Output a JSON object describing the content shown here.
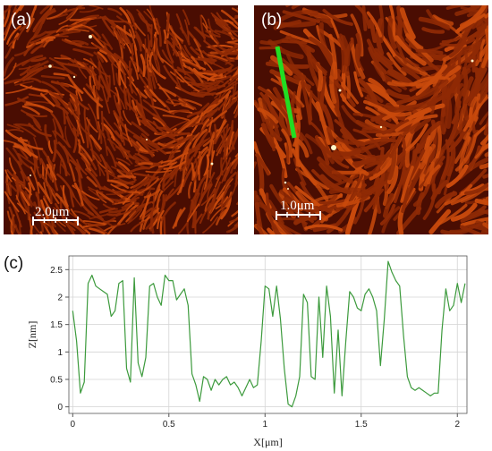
{
  "panels": {
    "a": {
      "label": "(a)",
      "scale_bar": "2.0μm"
    },
    "b": {
      "label": "(b)",
      "scale_bar": "1.0μm"
    },
    "c": {
      "label": "(c)"
    }
  },
  "colors": {
    "afm_dark": "#4a0d02",
    "afm_mid": "#8f2a05",
    "afm_light": "#c94a0c",
    "line_marker": "#22dd22",
    "profile_line": "#3c9a3c",
    "grid": "#d4d4d4"
  },
  "chart_data": {
    "type": "line",
    "xlabel": "X[μm]",
    "ylabel": "Z[nm]",
    "xlim": [
      -0.02,
      2.05
    ],
    "ylim": [
      -0.12,
      2.75
    ],
    "x_ticks": [
      0,
      0.5,
      1,
      1.5,
      2
    ],
    "x_tick_labels": [
      "0",
      "0.5",
      "1",
      "1.5",
      "2"
    ],
    "y_ticks": [
      0,
      0.5,
      1,
      1.5,
      2,
      2.5
    ],
    "y_tick_labels": [
      "0",
      "0.5",
      "1",
      "1.5",
      "2",
      "2.5"
    ],
    "grid": true,
    "series": [
      {
        "x": [
          0.0,
          0.02,
          0.04,
          0.06,
          0.08,
          0.1,
          0.12,
          0.14,
          0.16,
          0.18,
          0.2,
          0.22,
          0.24,
          0.26,
          0.28,
          0.3,
          0.32,
          0.34,
          0.36,
          0.38,
          0.4,
          0.42,
          0.44,
          0.46,
          0.48,
          0.5,
          0.52,
          0.54,
          0.56,
          0.58,
          0.6,
          0.62,
          0.64,
          0.66,
          0.68,
          0.7,
          0.72,
          0.74,
          0.76,
          0.78,
          0.8,
          0.82,
          0.84,
          0.86,
          0.88,
          0.9,
          0.92,
          0.94,
          0.96,
          0.98,
          1.0,
          1.02,
          1.04,
          1.06,
          1.08,
          1.1,
          1.12,
          1.14,
          1.16,
          1.18,
          1.2,
          1.22,
          1.24,
          1.26,
          1.28,
          1.3,
          1.32,
          1.34,
          1.36,
          1.38,
          1.4,
          1.42,
          1.44,
          1.46,
          1.48,
          1.5,
          1.52,
          1.54,
          1.56,
          1.58,
          1.6,
          1.62,
          1.64,
          1.66,
          1.68,
          1.7,
          1.72,
          1.74,
          1.76,
          1.78,
          1.8,
          1.82,
          1.84,
          1.86,
          1.88,
          1.9,
          1.92,
          1.94,
          1.96,
          1.98,
          2.0,
          2.02,
          2.04
        ],
        "y": [
          1.75,
          1.2,
          0.25,
          0.45,
          2.25,
          2.4,
          2.2,
          2.15,
          2.1,
          2.05,
          1.65,
          1.75,
          2.25,
          2.3,
          0.7,
          0.45,
          2.35,
          0.8,
          0.55,
          0.9,
          2.2,
          2.25,
          2.0,
          1.85,
          2.4,
          2.3,
          2.3,
          1.95,
          2.05,
          2.15,
          1.85,
          0.6,
          0.4,
          0.1,
          0.55,
          0.5,
          0.3,
          0.5,
          0.4,
          0.5,
          0.55,
          0.4,
          0.45,
          0.35,
          0.2,
          0.35,
          0.5,
          0.35,
          0.4,
          1.2,
          2.2,
          2.15,
          1.65,
          2.2,
          1.6,
          0.7,
          0.05,
          0.0,
          0.2,
          0.55,
          2.05,
          1.9,
          0.55,
          0.5,
          2.0,
          0.9,
          2.2,
          1.65,
          0.25,
          1.4,
          0.2,
          1.2,
          2.1,
          2.0,
          1.8,
          1.75,
          2.05,
          2.15,
          2.0,
          1.75,
          0.75,
          1.6,
          2.65,
          2.45,
          2.3,
          2.2,
          1.3,
          0.55,
          0.35,
          0.3,
          0.35,
          0.3,
          0.25,
          0.2,
          0.25,
          0.25,
          1.4,
          2.15,
          1.75,
          1.85,
          2.25,
          1.9,
          2.25
        ]
      }
    ]
  }
}
